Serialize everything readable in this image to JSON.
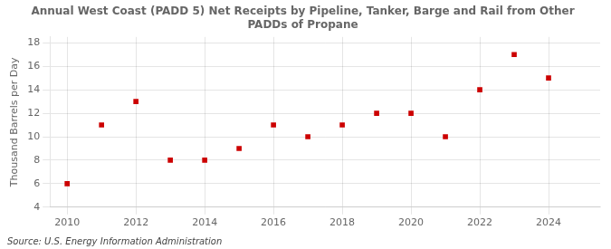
{
  "chart_data": {
    "type": "scatter",
    "title": "Annual West Coast (PADD 5) Net Receipts by Pipeline, Tanker, Barge and Rail from Other\nPADDs of Propane",
    "ylabel": "Thousand Barrels per Day",
    "annotations": [
      "Source: U.S. Energy Information Administration"
    ],
    "x": [
      2010,
      2011,
      2012,
      2013,
      2014,
      2015,
      2016,
      2017,
      2018,
      2019,
      2020,
      2021,
      2022,
      2023,
      2024
    ],
    "values": [
      6.0,
      11.0,
      13.0,
      8.0,
      8.0,
      9.0,
      11.0,
      10.0,
      11.0,
      12.0,
      12.0,
      10.0,
      14.0,
      17.0,
      15.0
    ],
    "color": "#cc0000",
    "marker": "square",
    "xlim": [
      2009.5,
      2025.5
    ],
    "xticks": [
      2010,
      2012,
      2014,
      2016,
      2018,
      2020,
      2022,
      2024
    ],
    "ylim": [
      4,
      18.5
    ],
    "yticks": [
      4,
      6,
      8,
      10,
      12,
      14,
      16,
      18
    ],
    "grid": true
  }
}
